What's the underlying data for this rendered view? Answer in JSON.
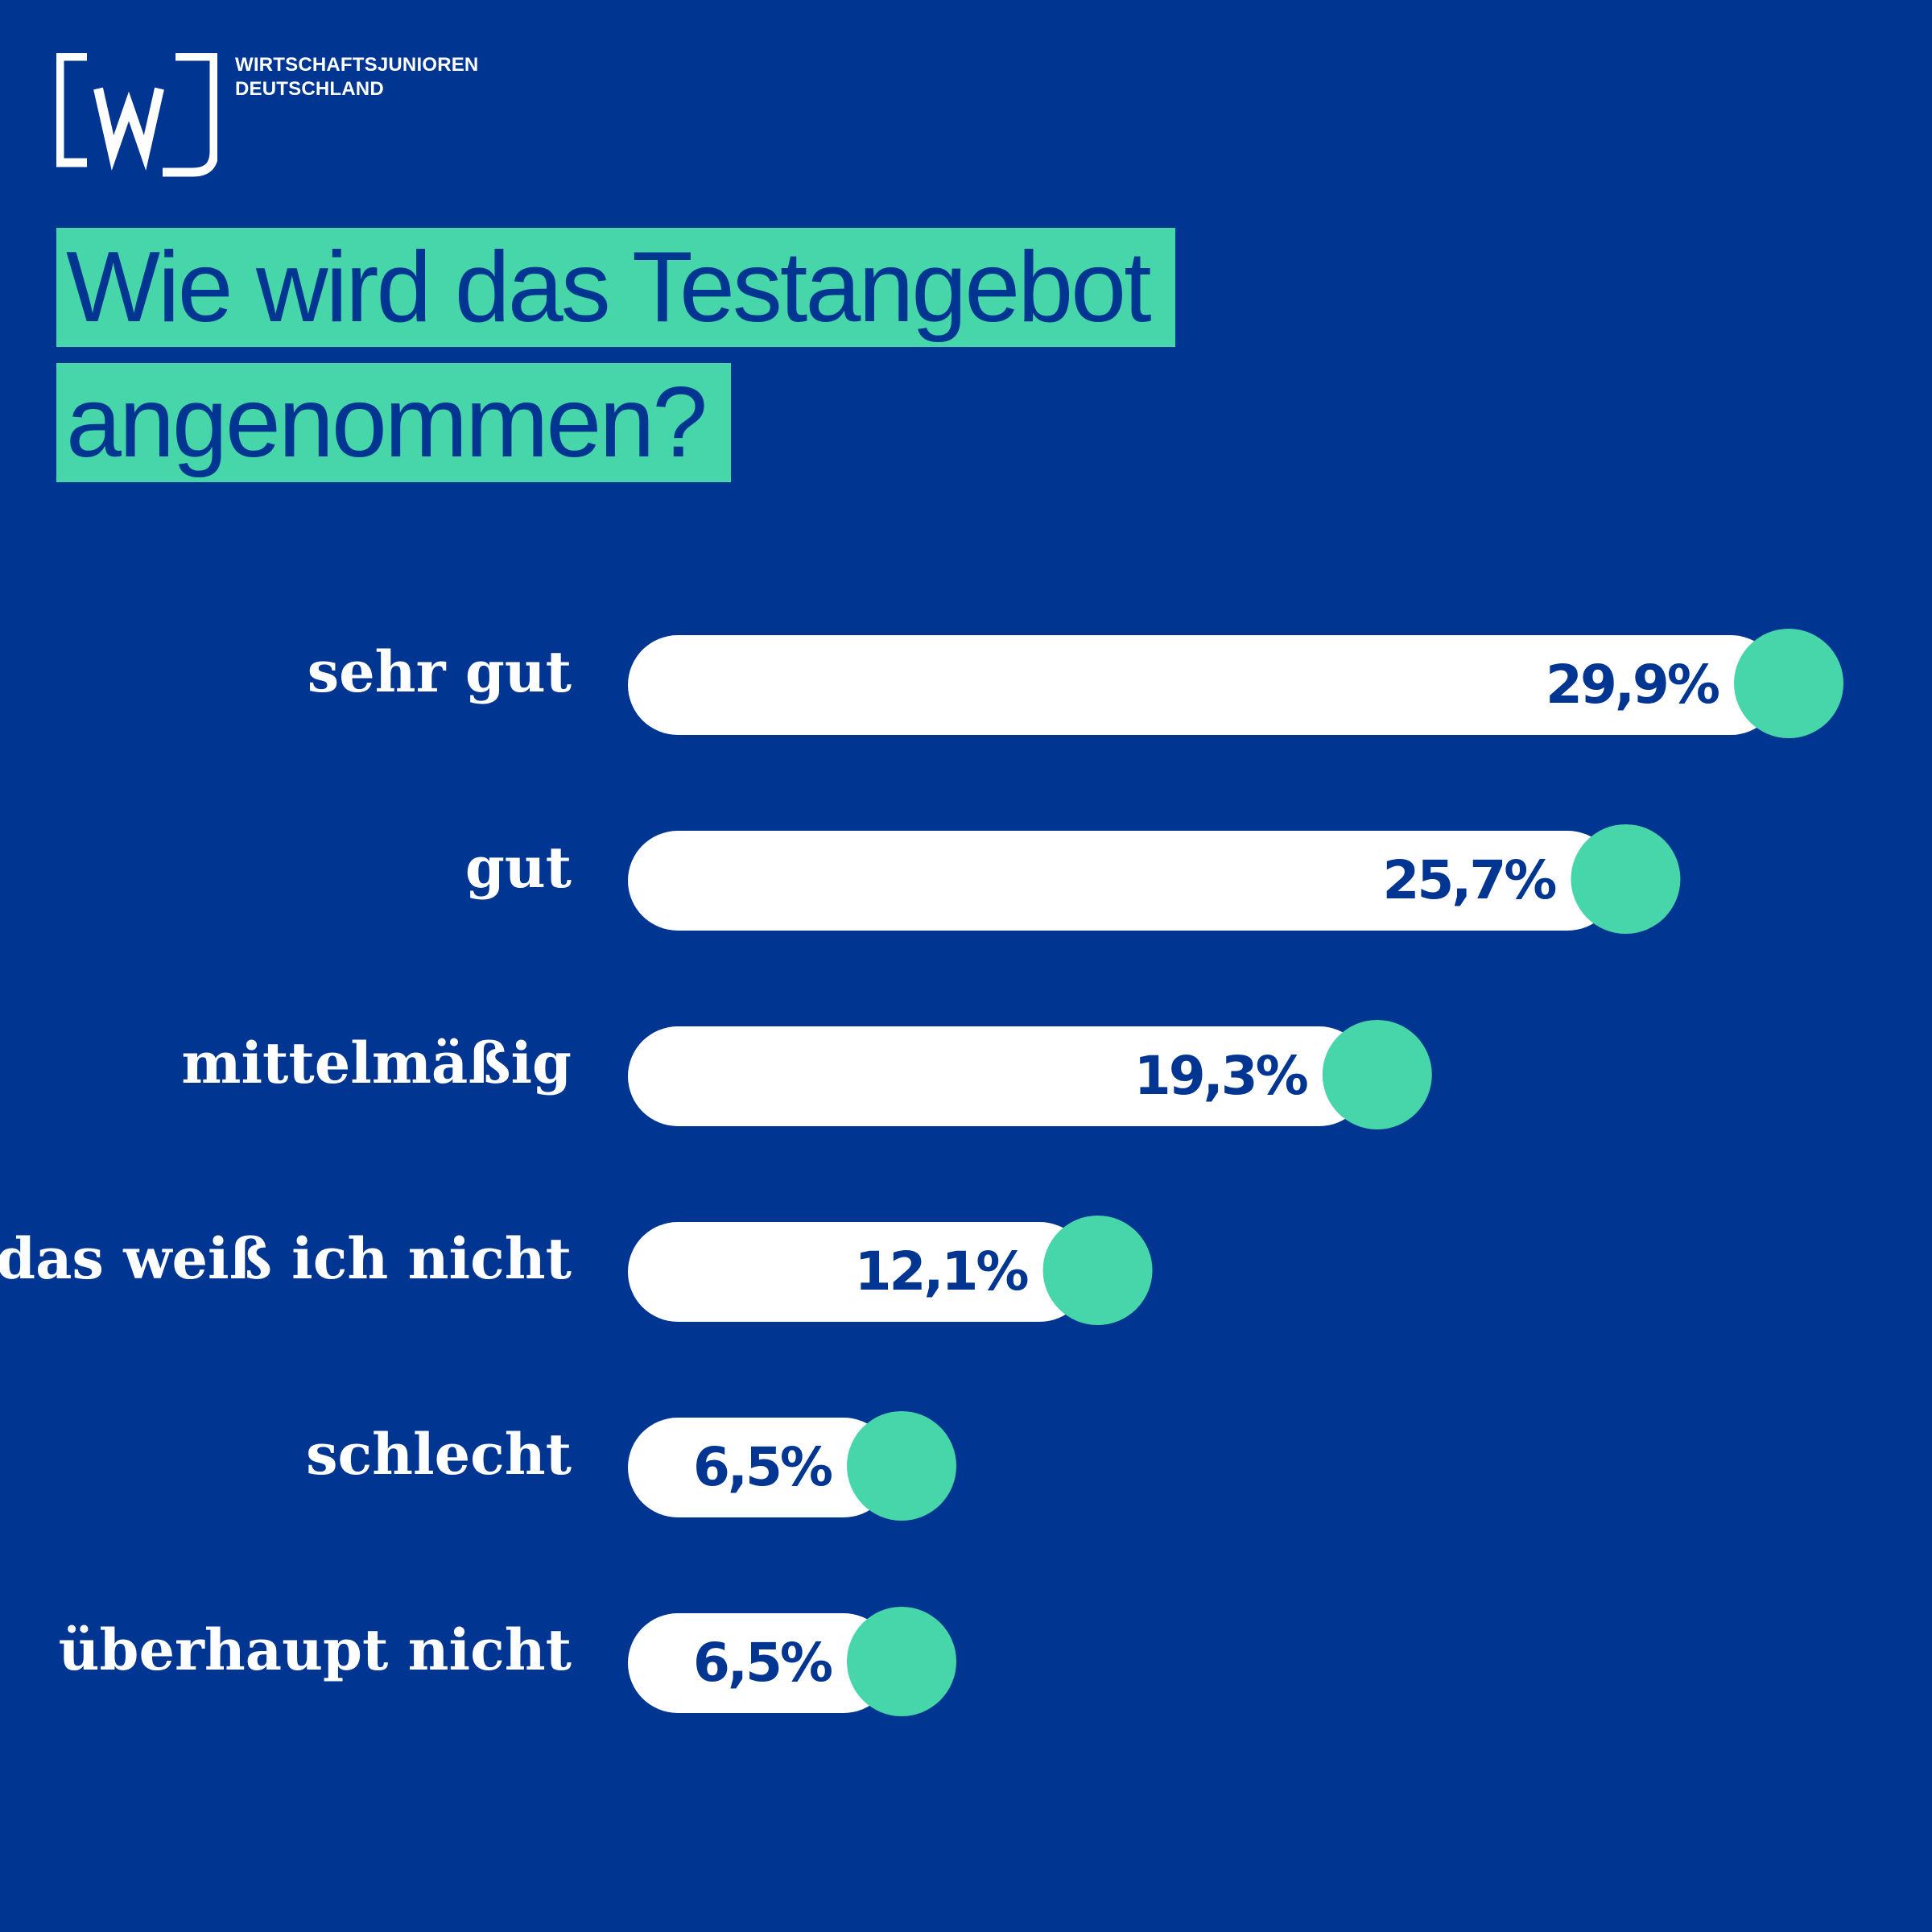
{
  "brand": {
    "name_line1": "WIRTSCHAFTSJUNIOREN",
    "name_line2": "DEUTSCHLAND",
    "logo_text": "[wj]"
  },
  "heading": {
    "line1": "Wie wird das Testangebot",
    "line2": "angenommen?"
  },
  "colors": {
    "background": "#003591",
    "accent": "#46d6a9",
    "bar": "#ffffff",
    "value_text": "#003591",
    "label_text": "#ffffff"
  },
  "chart_data": {
    "type": "bar",
    "orientation": "horizontal",
    "title": "Wie wird das Testangebot angenommen?",
    "unit": "%",
    "categories": [
      "sehr gut",
      "gut",
      "mittelmäßig",
      "das weiß ich nicht",
      "schlecht",
      "überhaupt nicht"
    ],
    "values": [
      29.9,
      25.7,
      19.3,
      12.1,
      6.5,
      6.5
    ],
    "value_labels": [
      "29,9%",
      "25,7%",
      "19,3%",
      "12,1%",
      "6,5%",
      "6,5%"
    ],
    "grid": false,
    "legend": "none"
  }
}
